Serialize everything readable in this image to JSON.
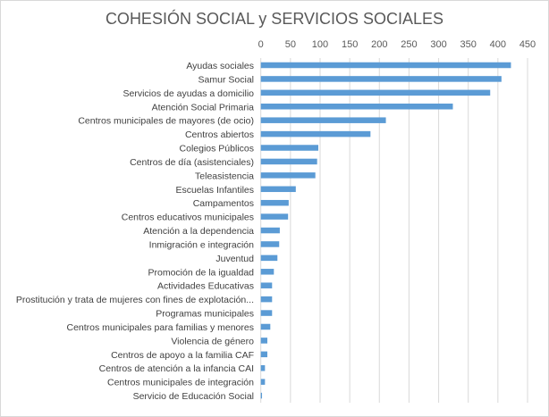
{
  "chart_data": {
    "type": "bar",
    "orientation": "horizontal",
    "title": "COHESIÓN SOCIAL y SERVICIOS SOCIALES",
    "xlabel": "",
    "ylabel": "",
    "xlim": [
      0,
      450
    ],
    "xticks": [
      0,
      50,
      100,
      150,
      200,
      250,
      300,
      350,
      400,
      450
    ],
    "x_axis_position": "top",
    "grid": true,
    "legend": "none",
    "bar_color": "#5b9bd5",
    "categories": [
      "Ayudas sociales",
      "Samur Social",
      "Servicios de ayudas a domicilio",
      "Atención Social Primaria",
      "Centros municipales de mayores (de ocio)",
      "Centros abiertos",
      "Colegios Públicos",
      "Centros de día (asistenciales)",
      "Teleasistencia",
      "Escuelas Infantiles",
      "Campamentos",
      "Centros educativos municipales",
      "Atención a la dependencia",
      "Inmigración e integración",
      "Juventud",
      "Promoción de la igualdad",
      "Actividades Educativas",
      "Prostitución y trata de mujeres con fines de explotación...",
      "Programas municipales",
      "Centros municipales para familias y menores",
      "Violencia de género",
      "Centros de apoyo a la familia CAF",
      "Centros de atención a la infancia CAI",
      "Centros municipales de integración",
      "Servicio de Educación Social"
    ],
    "values": [
      422,
      406,
      387,
      324,
      211,
      185,
      97,
      95,
      92,
      59,
      47,
      46,
      32,
      31,
      28,
      22,
      19,
      19,
      19,
      16,
      11,
      11,
      7,
      7,
      2
    ]
  }
}
